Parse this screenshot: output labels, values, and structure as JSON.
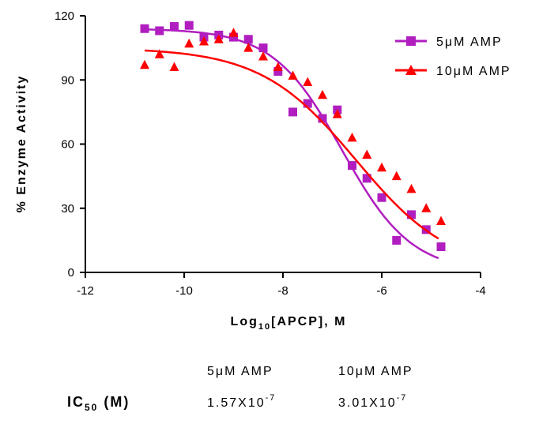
{
  "chart_data": {
    "type": "scatter",
    "xlabel": {
      "main": "Log",
      "sub": "10",
      "rest": "[APCP], M"
    },
    "ylabel": "% Enzyme Activity",
    "xlim": [
      -12,
      -4
    ],
    "ylim": [
      0,
      120
    ],
    "xticks": [
      -12,
      -10,
      -8,
      -6,
      -4
    ],
    "yticks": [
      0,
      30,
      60,
      90,
      120
    ],
    "legend_position": "top-right",
    "series": [
      {
        "name": "5μM AMP",
        "color": "#b01ec0",
        "marker": "square",
        "points": [
          [
            -10.8,
            114
          ],
          [
            -10.5,
            113
          ],
          [
            -10.2,
            115
          ],
          [
            -9.9,
            115.5
          ],
          [
            -9.6,
            110
          ],
          [
            -9.3,
            111
          ],
          [
            -9.0,
            110
          ],
          [
            -8.7,
            109
          ],
          [
            -8.4,
            105
          ],
          [
            -8.1,
            94
          ],
          [
            -7.8,
            75
          ],
          [
            -7.5,
            79
          ],
          [
            -7.2,
            72
          ],
          [
            -6.9,
            76
          ],
          [
            -6.6,
            50
          ],
          [
            -6.3,
            44
          ],
          [
            -6.0,
            35
          ],
          [
            -5.7,
            15
          ],
          [
            -5.4,
            27
          ],
          [
            -5.1,
            20
          ],
          [
            -4.8,
            12
          ]
        ],
        "fit": {
          "top": 114,
          "bottom": 0,
          "log_ic50": -6.8,
          "hill": -0.62
        }
      },
      {
        "name": "10μM AMP",
        "color": "#ff0000",
        "marker": "triangle",
        "points": [
          [
            -10.8,
            97
          ],
          [
            -10.5,
            102
          ],
          [
            -10.2,
            96
          ],
          [
            -9.9,
            107
          ],
          [
            -9.6,
            108
          ],
          [
            -9.3,
            109
          ],
          [
            -9.0,
            112
          ],
          [
            -8.7,
            105
          ],
          [
            -8.4,
            101
          ],
          [
            -8.1,
            96
          ],
          [
            -7.8,
            92
          ],
          [
            -7.5,
            89
          ],
          [
            -7.2,
            83
          ],
          [
            -6.9,
            74
          ],
          [
            -6.6,
            63
          ],
          [
            -6.3,
            55
          ],
          [
            -6.0,
            49
          ],
          [
            -5.7,
            45
          ],
          [
            -5.4,
            39
          ],
          [
            -5.1,
            30
          ],
          [
            -4.8,
            24
          ]
        ],
        "fit": {
          "top": 105,
          "bottom": 0,
          "log_ic50": -6.52,
          "hill": -0.45
        }
      }
    ],
    "ic50_table": {
      "row_label": {
        "main": "IC",
        "sub": "50",
        "rest": " (M)"
      },
      "columns": [
        {
          "header": "5μM AMP",
          "mantissa": "1.57X10",
          "exponent": "-7"
        },
        {
          "header": "10μM AMP",
          "mantissa": "3.01X10",
          "exponent": "-7"
        }
      ]
    }
  }
}
